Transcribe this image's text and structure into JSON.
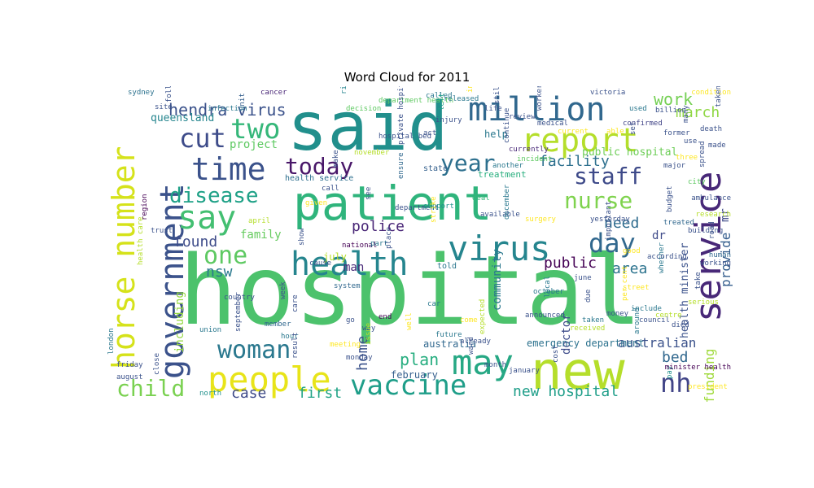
{
  "chart_data": {
    "type": "wordcloud",
    "title": "Word Cloud for 2011",
    "colormap": "viridis",
    "background": "#ffffff",
    "words": [
      {
        "text": "hospital",
        "weight": 100,
        "color": "#4cc26c"
      },
      {
        "text": "said",
        "weight": 52,
        "color": "#218f8c"
      },
      {
        "text": "patient",
        "weight": 48,
        "color": "#2fb47c"
      },
      {
        "text": "new",
        "weight": 42,
        "color": "#b5de2b"
      },
      {
        "text": "government",
        "weight": 38,
        "color": "#3b528b"
      },
      {
        "text": "service",
        "weight": 38,
        "color": "#482878"
      },
      {
        "text": "may",
        "weight": 34,
        "color": "#26a884"
      },
      {
        "text": "people",
        "weight": 34,
        "color": "#e8e419"
      },
      {
        "text": "virus",
        "weight": 32,
        "color": "#25858e"
      },
      {
        "text": "health",
        "weight": 30,
        "color": "#25858e"
      },
      {
        "text": "horse number",
        "weight": 30,
        "color": "#d5e21a"
      },
      {
        "text": "report",
        "weight": 30,
        "color": "#b5de2b"
      },
      {
        "text": "million",
        "weight": 28,
        "color": "#31688e"
      },
      {
        "text": "time",
        "weight": 28,
        "color": "#3b528b"
      },
      {
        "text": "say",
        "weight": 28,
        "color": "#43bf71"
      },
      {
        "text": "vaccine",
        "weight": 26,
        "color": "#1f9e89"
      },
      {
        "text": "woman",
        "weight": 24,
        "color": "#2a788e"
      },
      {
        "text": "nh",
        "weight": 24,
        "color": "#414487"
      },
      {
        "text": "two",
        "weight": 24,
        "color": "#35b779"
      },
      {
        "text": "cut",
        "weight": 22,
        "color": "#3e4c8a"
      },
      {
        "text": "day",
        "weight": 22,
        "color": "#31688e"
      },
      {
        "text": "one",
        "weight": 22,
        "color": "#5ec962"
      },
      {
        "text": "today",
        "weight": 20,
        "color": "#481668"
      },
      {
        "text": "child",
        "weight": 20,
        "color": "#7ad151"
      },
      {
        "text": "year",
        "weight": 20,
        "color": "#2d708e"
      },
      {
        "text": "staff",
        "weight": 20,
        "color": "#3e4a89"
      },
      {
        "text": "nurse",
        "weight": 20,
        "color": "#7fd34e"
      },
      {
        "text": "disease",
        "weight": 18,
        "color": "#1fa187"
      },
      {
        "text": "hendra virus",
        "weight": 16,
        "color": "#3b528b"
      },
      {
        "text": "work",
        "weight": 16,
        "color": "#75d054"
      },
      {
        "text": "march",
        "weight": 14,
        "color": "#8fd744"
      },
      {
        "text": "found",
        "weight": 14,
        "color": "#3e4c8a"
      },
      {
        "text": "nsw",
        "weight": 14,
        "color": "#2a788e"
      },
      {
        "text": "police",
        "weight": 14,
        "color": "#482576"
      },
      {
        "text": "need",
        "weight": 14,
        "color": "#2f6c8e"
      },
      {
        "text": "area",
        "weight": 14,
        "color": "#2c738e"
      },
      {
        "text": "public",
        "weight": 14,
        "color": "#440154"
      },
      {
        "text": "facility",
        "weight": 14,
        "color": "#2d708e"
      },
      {
        "text": "home",
        "weight": 14,
        "color": "#3b528b"
      },
      {
        "text": "plan",
        "weight": 14,
        "color": "#28ae80"
      },
      {
        "text": "case",
        "weight": 14,
        "color": "#3e4a89"
      },
      {
        "text": "first",
        "weight": 14,
        "color": "#20a386"
      },
      {
        "text": "new hospital",
        "weight": 14,
        "color": "#1f9e89"
      },
      {
        "text": "bed",
        "weight": 14,
        "color": "#31688e"
      },
      {
        "text": "funding",
        "weight": 14,
        "color": "#9fda3a"
      },
      {
        "text": "provide",
        "weight": 12,
        "color": "#355e8d"
      },
      {
        "text": "australian",
        "weight": 12,
        "color": "#3b528b"
      },
      {
        "text": "community",
        "weight": 12,
        "color": "#2a788e"
      },
      {
        "text": "project",
        "weight": 12,
        "color": "#5ec962"
      },
      {
        "text": "family",
        "weight": 11,
        "color": "#65cb5e"
      },
      {
        "text": "including",
        "weight": 11,
        "color": "#95d840"
      },
      {
        "text": "man",
        "weight": 11,
        "color": "#482878"
      },
      {
        "text": "doctor",
        "weight": 11,
        "color": "#3e4c8a"
      },
      {
        "text": "health minister",
        "weight": 11,
        "color": "#3b528b"
      },
      {
        "text": "dr",
        "weight": 11,
        "color": "#3e4a89"
      },
      {
        "text": "mr",
        "weight": 11,
        "color": "#3e4a89"
      },
      {
        "text": "public hospital",
        "weight": 10,
        "color": "#6ece58"
      },
      {
        "text": "queensland",
        "weight": 10,
        "color": "#25858e"
      },
      {
        "text": "help",
        "weight": 9,
        "color": "#2a788e"
      },
      {
        "text": "emergency department",
        "weight": 9,
        "color": "#2c728e"
      },
      {
        "text": "australia",
        "weight": 9,
        "color": "#31688e"
      },
      {
        "text": "february",
        "weight": 9,
        "color": "#355f8d"
      },
      {
        "text": "july",
        "weight": 9,
        "color": "#b8de29"
      },
      {
        "text": "treatment",
        "weight": 8,
        "color": "#29af7f"
      },
      {
        "text": "health service",
        "weight": 8,
        "color": "#2e6f8e"
      },
      {
        "text": "state",
        "weight": 8,
        "color": "#34608d"
      },
      {
        "text": "told",
        "weight": 8,
        "color": "#2a778e"
      },
      {
        "text": "sydney",
        "weight": 7,
        "color": "#2c728e"
      },
      {
        "text": "cancer",
        "weight": 7,
        "color": "#482576"
      },
      {
        "text": "risk",
        "weight": 7,
        "color": "#25848e"
      },
      {
        "text": "department health",
        "weight": 7,
        "color": "#5ec962"
      },
      {
        "text": "released",
        "weight": 7,
        "color": "#2a788e"
      },
      {
        "text": "increase",
        "weight": 7,
        "color": "#fde725"
      },
      {
        "text": "victoria",
        "weight": 7,
        "color": "#3b528b"
      },
      {
        "text": "condition",
        "weight": 7,
        "color": "#fde725"
      },
      {
        "text": "taken hospital",
        "weight": 7,
        "color": "#3b528b"
      },
      {
        "text": "used",
        "weight": 7,
        "color": "#2a788e"
      },
      {
        "text": "billion",
        "weight": 7,
        "color": "#3b528b"
      },
      {
        "text": "unit",
        "weight": 7,
        "color": "#355f8d"
      },
      {
        "text": "infection",
        "weight": 7,
        "color": "#2a788e"
      },
      {
        "text": "site",
        "weight": 7,
        "color": "#3b528b"
      },
      {
        "text": "following",
        "weight": 7,
        "color": "#3b528b"
      },
      {
        "text": "decision",
        "weight": 7,
        "color": "#5ec962"
      },
      {
        "text": "called",
        "weight": 7,
        "color": "#2a788e"
      },
      {
        "text": "left",
        "weight": 7,
        "color": "#1f9e89"
      },
      {
        "text": "injury",
        "weight": 7,
        "color": "#3b528b"
      },
      {
        "text": "currently",
        "weight": 7,
        "color": "#482878"
      },
      {
        "text": "continue",
        "weight": 7,
        "color": "#3b528b"
      },
      {
        "text": "confirmed",
        "weight": 7,
        "color": "#414487"
      },
      {
        "text": "incident",
        "weight": 7,
        "color": "#5ec962"
      },
      {
        "text": "ensure",
        "weight": 7,
        "color": "#31688e"
      },
      {
        "text": "another",
        "weight": 7,
        "color": "#2a788e"
      },
      {
        "text": "city",
        "weight": 7,
        "color": "#5ec962"
      },
      {
        "text": "see",
        "weight": 7,
        "color": "#3b528b"
      },
      {
        "text": "department",
        "weight": 7,
        "color": "#3b528b"
      },
      {
        "text": "support",
        "weight": 7,
        "color": "#21918c"
      },
      {
        "text": "strike",
        "weight": 7,
        "color": "#fde725"
      },
      {
        "text": "deal",
        "weight": 7,
        "color": "#35b779"
      },
      {
        "text": "available",
        "weight": 7,
        "color": "#3b528b"
      },
      {
        "text": "december",
        "weight": 7,
        "color": "#2a788e"
      },
      {
        "text": "surgery",
        "weight": 7,
        "color": "#fde725"
      },
      {
        "text": "yesterday",
        "weight": 7,
        "color": "#3b528b"
      },
      {
        "text": "budget",
        "weight": 7,
        "color": "#3b528b"
      },
      {
        "text": "treated",
        "weight": 7,
        "color": "#31688e"
      },
      {
        "text": "building",
        "weight": 7,
        "color": "#3b528b"
      },
      {
        "text": "region",
        "weight": 7,
        "color": "#440154"
      },
      {
        "text": "trust",
        "weight": 7,
        "color": "#3b528b"
      },
      {
        "text": "april",
        "weight": 7,
        "color": "#b5de2b"
      },
      {
        "text": "show",
        "weight": 7,
        "color": "#3b528b"
      },
      {
        "text": "national",
        "weight": 7,
        "color": "#440154"
      },
      {
        "text": "part",
        "weight": 7,
        "color": "#2a788e"
      },
      {
        "text": "place",
        "weight": 7,
        "color": "#3b528b"
      },
      {
        "text": "cause",
        "weight": 7,
        "color": "#3b528b"
      },
      {
        "text": "system",
        "weight": 7,
        "color": "#31688e"
      },
      {
        "text": "week",
        "weight": 7,
        "color": "#3b528b"
      },
      {
        "text": "member",
        "weight": 7,
        "color": "#31688e"
      },
      {
        "text": "hour",
        "weight": 7,
        "color": "#2a788e"
      },
      {
        "text": "care",
        "weight": 7,
        "color": "#3b528b"
      },
      {
        "text": "go",
        "weight": 7,
        "color": "#3b528b"
      },
      {
        "text": "end",
        "weight": 7,
        "color": "#440154"
      },
      {
        "text": "well",
        "weight": 7,
        "color": "#fde725"
      },
      {
        "text": "car",
        "weight": 7,
        "color": "#2a788e"
      },
      {
        "text": "come",
        "weight": 7,
        "color": "#fde725"
      },
      {
        "text": "expected",
        "weight": 7,
        "color": "#b5de2b"
      },
      {
        "text": "announced",
        "weight": 7,
        "color": "#3b528b"
      },
      {
        "text": "october",
        "weight": 7,
        "color": "#2a788e"
      },
      {
        "text": "local",
        "weight": 7,
        "color": "#2a788e"
      },
      {
        "text": "june",
        "weight": 7,
        "color": "#3b528b"
      },
      {
        "text": "street",
        "weight": 7,
        "color": "#fde725"
      },
      {
        "text": "per cent",
        "weight": 7,
        "color": "#fde725"
      },
      {
        "text": "include",
        "weight": 7,
        "color": "#2a788e"
      },
      {
        "text": "council",
        "weight": 7,
        "color": "#3b528b"
      },
      {
        "text": "around",
        "weight": 7,
        "color": "#2a788e"
      },
      {
        "text": "died",
        "weight": 7,
        "color": "#3b528b"
      },
      {
        "text": "serious",
        "weight": 7,
        "color": "#b5de2b"
      },
      {
        "text": "take",
        "weight": 7,
        "color": "#3b528b"
      },
      {
        "text": "working",
        "weight": 7,
        "color": "#3b528b"
      },
      {
        "text": "human",
        "weight": 7,
        "color": "#31688e"
      },
      {
        "text": "road",
        "weight": 7,
        "color": "#3b528b"
      },
      {
        "text": "research",
        "weight": 7,
        "color": "#b5de2b"
      },
      {
        "text": "ambulance",
        "weight": 7,
        "color": "#3b528b"
      },
      {
        "text": "london",
        "weight": 7,
        "color": "#2a788e"
      },
      {
        "text": "friday",
        "weight": 7,
        "color": "#3b528b"
      },
      {
        "text": "august",
        "weight": 7,
        "color": "#3b528b"
      },
      {
        "text": "close",
        "weight": 7,
        "color": "#3b528b"
      },
      {
        "text": "north",
        "weight": 7,
        "color": "#21918c"
      },
      {
        "text": "country",
        "weight": 7,
        "color": "#3b528b"
      },
      {
        "text": "september",
        "weight": 7,
        "color": "#3b528b"
      },
      {
        "text": "union",
        "weight": 7,
        "color": "#2a788e"
      },
      {
        "text": "meeting",
        "weight": 7,
        "color": "#fde725"
      },
      {
        "text": "result",
        "weight": 7,
        "color": "#3b528b"
      },
      {
        "text": "monday",
        "weight": 7,
        "color": "#3b528b"
      },
      {
        "text": "way",
        "weight": 7,
        "color": "#3b528b"
      },
      {
        "text": "issue",
        "weight": 7,
        "color": "#b5de2b"
      },
      {
        "text": "future",
        "weight": 7,
        "color": "#2a788e"
      },
      {
        "text": "already",
        "weight": 7,
        "color": "#3b528b"
      },
      {
        "text": "ward",
        "weight": 7,
        "color": "#3b528b"
      },
      {
        "text": "month",
        "weight": 7,
        "color": "#3b528b"
      },
      {
        "text": "january",
        "weight": 7,
        "color": "#3b528b"
      },
      {
        "text": "cost",
        "weight": 7,
        "color": "#3b528b"
      },
      {
        "text": "received",
        "weight": 7,
        "color": "#b5de2b"
      },
      {
        "text": "taken",
        "weight": 7,
        "color": "#2a788e"
      },
      {
        "text": "due",
        "weight": 7,
        "color": "#3b528b"
      },
      {
        "text": "money",
        "weight": 7,
        "color": "#3b528b"
      },
      {
        "text": "centre",
        "weight": 7,
        "color": "#b5de2b"
      },
      {
        "text": "pay",
        "weight": 7,
        "color": "#21918c"
      },
      {
        "text": "president",
        "weight": 7,
        "color": "#fde725"
      },
      {
        "text": "minister health",
        "weight": 7,
        "color": "#440154"
      },
      {
        "text": "whether",
        "weight": 7,
        "color": "#2a788e"
      },
      {
        "text": "according",
        "weight": 7,
        "color": "#3b528b"
      },
      {
        "text": "good",
        "weight": 7,
        "color": "#fde725"
      },
      {
        "text": "important",
        "weight": 7,
        "color": "#3b528b"
      },
      {
        "text": "major",
        "weight": 7,
        "color": "#3b528b"
      },
      {
        "text": "three",
        "weight": 7,
        "color": "#fde725"
      },
      {
        "text": "spread",
        "weight": 7,
        "color": "#3b528b"
      },
      {
        "text": "made",
        "weight": 7,
        "color": "#3b528b"
      },
      {
        "text": "death",
        "weight": 7,
        "color": "#3b528b"
      },
      {
        "text": "many",
        "weight": 7,
        "color": "#3b528b"
      },
      {
        "text": "use",
        "weight": 7,
        "color": "#3b528b"
      },
      {
        "text": "former",
        "weight": 7,
        "color": "#3b528b"
      },
      {
        "text": "set",
        "weight": 7,
        "color": "#3b528b"
      },
      {
        "text": "able",
        "weight": 7,
        "color": "#fde725"
      },
      {
        "text": "current",
        "weight": 7,
        "color": "#fde725"
      },
      {
        "text": "worker",
        "weight": 7,
        "color": "#3b528b"
      },
      {
        "text": "medical",
        "weight": 7,
        "color": "#3b528b"
      },
      {
        "text": "review",
        "weight": 7,
        "color": "#3b528b"
      },
      {
        "text": "still",
        "weight": 7,
        "color": "#3b528b"
      },
      {
        "text": "life",
        "weight": 7,
        "color": "#3b528b"
      },
      {
        "text": "act",
        "weight": 7,
        "color": "#3b528b"
      },
      {
        "text": "private hospital",
        "weight": 7,
        "color": "#3b528b"
      },
      {
        "text": "hospital bed",
        "weight": 7,
        "color": "#3b528b"
      },
      {
        "text": "november",
        "weight": 7,
        "color": "#b5de2b"
      },
      {
        "text": "make",
        "weight": 7,
        "color": "#3b528b"
      },
      {
        "text": "call",
        "weight": 7,
        "color": "#3b528b"
      },
      {
        "text": "given",
        "weight": 7,
        "color": "#fde725"
      },
      {
        "text": "health care",
        "weight": 7,
        "color": "#b5de2b"
      }
    ]
  }
}
